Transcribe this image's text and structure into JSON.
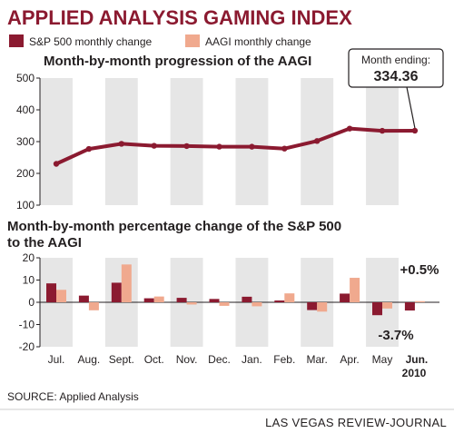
{
  "header": {
    "title": "APPLIED ANALYSIS GAMING INDEX"
  },
  "legend": {
    "sp500_label": "S&P 500 monthly change",
    "aagi_label": "AAGI monthly change"
  },
  "colors": {
    "sp500": "#8b1a30",
    "aagi": "#f0a98e",
    "line": "#8b1a30",
    "band": "#e6e6e6",
    "title": "#8b1a30"
  },
  "chart_data": [
    {
      "type": "line",
      "title": "Month-by-month progression of the AAGI",
      "categories": [
        "Jul.",
        "Aug.",
        "Sept.",
        "Oct.",
        "Nov.",
        "Dec.",
        "Jan.",
        "Feb.",
        "Mar.",
        "Apr.",
        "May",
        "Jun."
      ],
      "series": [
        {
          "values": [
            230,
            277,
            293,
            287,
            286,
            284,
            284,
            278,
            302,
            341,
            334,
            334.36
          ]
        }
      ],
      "ylim": [
        100,
        500
      ],
      "yticks": [
        100,
        200,
        300,
        400,
        500
      ],
      "annotation": {
        "label": "Month ending:",
        "value": "334.36"
      }
    },
    {
      "type": "bar",
      "title_line1": "Month-by-month percentage change of the S&P 500",
      "title_line2": "to the AAGI",
      "categories": [
        "Jul.",
        "Aug.",
        "Sept.",
        "Oct.",
        "Nov.",
        "Dec.",
        "Jan.",
        "Feb.",
        "Mar.",
        "Apr.",
        "May",
        "Jun."
      ],
      "year_label": "2010",
      "series": [
        {
          "name": "S&P 500 monthly change",
          "values": [
            8.5,
            3.0,
            8.8,
            1.8,
            2.0,
            1.5,
            2.5,
            0.8,
            -3.5,
            3.9,
            -5.8,
            -3.7
          ]
        },
        {
          "name": "AAGI monthly change",
          "values": [
            5.6,
            -3.6,
            17.0,
            2.6,
            -1.0,
            -1.6,
            -1.8,
            4.0,
            -4.2,
            11.0,
            -2.8,
            0.5
          ]
        }
      ],
      "ylim": [
        -20,
        20
      ],
      "yticks": [
        -20,
        -10,
        0,
        10,
        20
      ],
      "annotations": {
        "aagi_last": "+0.5%",
        "sp500_last": "-3.7%"
      }
    }
  ],
  "footer": {
    "source": "SOURCE: Applied Analysis",
    "credit": "LAS VEGAS REVIEW-JOURNAL"
  }
}
